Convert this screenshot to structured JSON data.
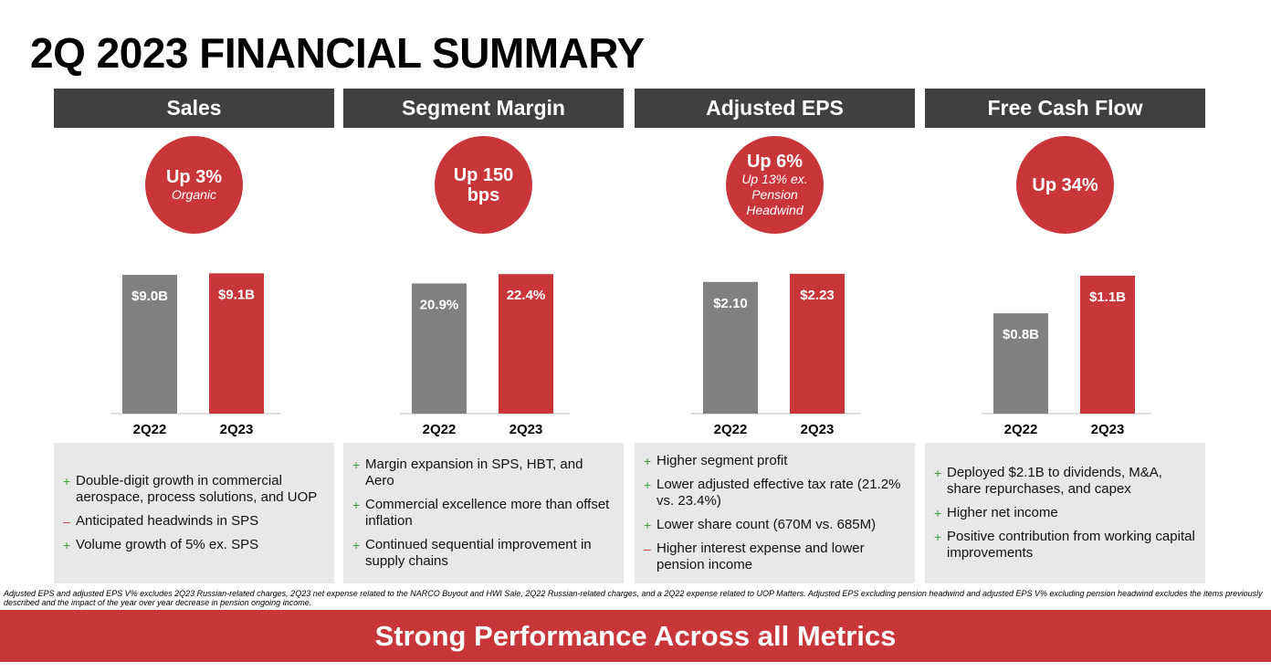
{
  "title": "2Q 2023 FINANCIAL SUMMARY",
  "colors": {
    "prior": "#808080",
    "current": "#c8363a",
    "header": "#404040",
    "positive": "#3b9a3b",
    "negative": "#c8363a"
  },
  "panels": [
    {
      "header": "Sales",
      "badge": {
        "main": "Up 3%",
        "sub": "Organic"
      },
      "notes": [
        {
          "sign": "+",
          "text": "Double-digit growth in commercial aerospace, process solutions, and UOP"
        },
        {
          "sign": "-",
          "text": "Anticipated headwinds in SPS"
        },
        {
          "sign": "+",
          "text": "Volume growth of 5% ex. SPS"
        }
      ]
    },
    {
      "header": "Segment Margin",
      "badge": {
        "main": "Up 150 bps",
        "sub": ""
      },
      "notes": [
        {
          "sign": "+",
          "text": "Margin expansion in SPS, HBT, and Aero"
        },
        {
          "sign": "+",
          "text": "Commercial excellence more than offset inflation"
        },
        {
          "sign": "+",
          "text": "Continued sequential improvement in supply chains"
        }
      ]
    },
    {
      "header": "Adjusted EPS",
      "badge": {
        "main": "Up 6%",
        "sub": "Up 13% ex. Pension Headwind"
      },
      "notes": [
        {
          "sign": "+",
          "text": "Higher segment profit"
        },
        {
          "sign": "+",
          "text": "Lower adjusted effective tax rate (21.2% vs. 23.4%)"
        },
        {
          "sign": "+",
          "text": "Lower share count (670M vs. 685M)"
        },
        {
          "sign": "-",
          "text": "Higher interest expense and lower pension income"
        }
      ]
    },
    {
      "header": "Free Cash Flow",
      "badge": {
        "main": "Up 34%",
        "sub": ""
      },
      "notes": [
        {
          "sign": "+",
          "text": "Deployed $2.1B to dividends, M&A, share repurchases, and capex"
        },
        {
          "sign": "+",
          "text": "Higher net income"
        },
        {
          "sign": "+",
          "text": "Positive contribution from working capital improvements"
        }
      ]
    }
  ],
  "chart_data": [
    {
      "type": "bar",
      "title": "Sales",
      "categories": [
        "2Q22",
        "2Q23"
      ],
      "values": [
        9.0,
        9.1
      ],
      "labels": [
        "$9.0B",
        "$9.1B"
      ],
      "ylim": [
        0,
        12.2
      ]
    },
    {
      "type": "bar",
      "title": "Segment Margin",
      "categories": [
        "2Q22",
        "2Q23"
      ],
      "values": [
        20.9,
        22.4
      ],
      "labels": [
        "20.9%",
        "22.4%"
      ],
      "ylim": [
        0,
        30.2
      ]
    },
    {
      "type": "bar",
      "title": "Adjusted EPS",
      "categories": [
        "2Q22",
        "2Q23"
      ],
      "values": [
        2.1,
        2.23
      ],
      "labels": [
        "$2.10",
        "$2.23"
      ],
      "ylim": [
        0,
        3.0
      ]
    },
    {
      "type": "bar",
      "title": "Free Cash Flow",
      "categories": [
        "2Q22",
        "2Q23"
      ],
      "values": [
        0.8,
        1.1
      ],
      "labels": [
        "$0.8B",
        "$1.1B"
      ],
      "ylim": [
        0,
        1.5
      ]
    }
  ],
  "footnote": "Adjusted EPS and adjusted EPS V% excludes 2Q23 Russian-related charges, 2Q23 net expense related to the NARCO Buyout and HWI Sale, 2Q22 Russian-related charges, and a 2Q22 expense related to UOP Matters. Adjusted EPS excluding pension headwind and adjusted EPS V% excluding pension headwind excludes the items previously described and the impact of the year over year decrease in pension ongoing income.",
  "banner": "Strong Performance Across all Metrics"
}
